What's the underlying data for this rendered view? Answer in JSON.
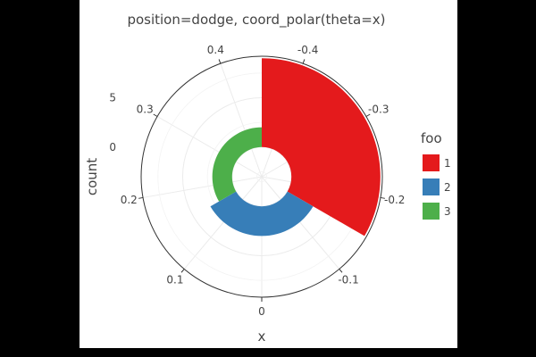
{
  "chart_data": {
    "type": "bar",
    "coord": "polar",
    "title": "position=dodge, coord_polar(theta=x)",
    "xlabel": "x",
    "ylabel": "count",
    "theta_ticks": [
      "0",
      "0.1",
      "0.2",
      "0.3",
      "0.4",
      "-0.4",
      "-0.3",
      "-0.2",
      "-0.1"
    ],
    "theta_tick_values": [
      0,
      0.1,
      0.2,
      0.3,
      0.4,
      -0.4,
      -0.3,
      -0.2,
      -0.1
    ],
    "theta_range": [
      -0.45,
      0.45
    ],
    "radial_ticks": [
      "0",
      "5"
    ],
    "radial_tick_values": [
      0,
      5
    ],
    "radial_range": [
      -3,
      9.2
    ],
    "legend": {
      "title": "foo",
      "position": "right",
      "entries": [
        {
          "label": "1",
          "color": "#e41a1c"
        },
        {
          "label": "2",
          "color": "#377eb8"
        },
        {
          "label": "3",
          "color": "#4daf4a"
        }
      ]
    },
    "series": [
      {
        "label": "1",
        "color": "#e41a1c",
        "x_range": [
          -0.45,
          -0.15
        ],
        "count": 9
      },
      {
        "label": "2",
        "color": "#377eb8",
        "x_range": [
          -0.15,
          0.15
        ],
        "count": 3
      },
      {
        "label": "3",
        "color": "#4daf4a",
        "x_range": [
          0.15,
          0.45
        ],
        "count": 2
      }
    ],
    "grid": true
  }
}
